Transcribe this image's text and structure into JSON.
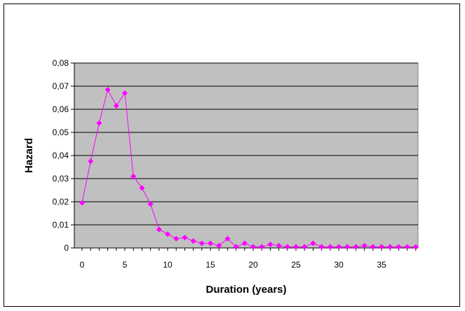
{
  "chart_data": {
    "type": "line",
    "title": "",
    "xlabel": "Duration (years)",
    "ylabel": "Hazard",
    "xlim": [
      0,
      39
    ],
    "ylim": [
      0,
      0.08
    ],
    "x_ticks": [
      0,
      5,
      10,
      15,
      20,
      25,
      30,
      35
    ],
    "y_ticks": [
      0,
      0.01,
      0.02,
      0.03,
      0.04,
      0.05,
      0.06,
      0.07,
      0.08
    ],
    "y_tick_labels": [
      "0",
      "0,01",
      "0,02",
      "0,03",
      "0,04",
      "0,05",
      "0,06",
      "0,07",
      "0,08"
    ],
    "grid": "horizontal",
    "legend": "none",
    "colors": {
      "series": "#ff00ff",
      "plot_background": "#c0c0c0",
      "grid": "#000000"
    },
    "series": [
      {
        "marker": "diamond",
        "x": [
          0,
          1,
          2,
          3,
          4,
          5,
          6,
          7,
          8,
          9,
          10,
          11,
          12,
          13,
          14,
          15,
          16,
          17,
          18,
          19,
          20,
          21,
          22,
          23,
          24,
          25,
          26,
          27,
          28,
          29,
          30,
          31,
          32,
          33,
          34,
          35,
          36,
          37,
          38,
          39
        ],
        "values": [
          0.0195,
          0.0375,
          0.054,
          0.0685,
          0.0615,
          0.067,
          0.031,
          0.026,
          0.019,
          0.008,
          0.006,
          0.004,
          0.0045,
          0.003,
          0.002,
          0.002,
          0.001,
          0.004,
          0.0005,
          0.002,
          0.0005,
          0.0005,
          0.0015,
          0.001,
          0.0005,
          0.0005,
          0.0005,
          0.002,
          0.0005,
          0.0005,
          0.0005,
          0.0005,
          0.0005,
          0.001,
          0.0005,
          0.0005,
          0.0005,
          0.0005,
          0.0005,
          0.0005
        ]
      }
    ]
  }
}
